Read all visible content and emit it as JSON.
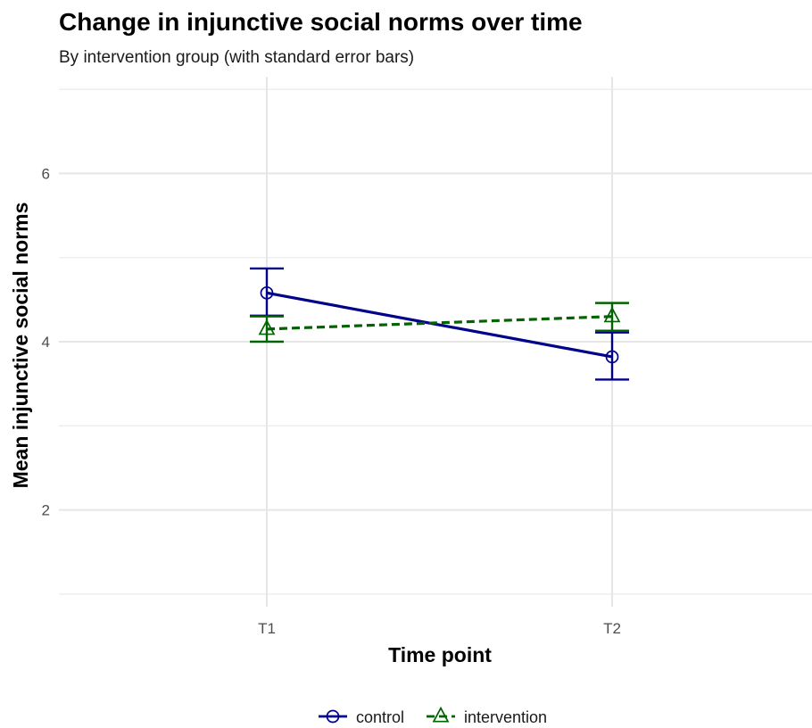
{
  "chart_data": {
    "type": "line",
    "title": "Change in injunctive social norms over time",
    "subtitle": "By intervention group (with standard error bars)",
    "xlabel": "Time point",
    "ylabel": "Mean injunctive social norms",
    "categories": [
      "T1",
      "T2"
    ],
    "ylim": [
      0.85,
      7.15
    ],
    "y_ticks": [
      2,
      4,
      6
    ],
    "y_tick_labels": [
      "2",
      "4",
      "6"
    ],
    "grid": true,
    "legend_position": "bottom",
    "series": [
      {
        "name": "control",
        "values": [
          4.58,
          3.82
        ],
        "se_lower": [
          4.31,
          3.55
        ],
        "se_upper": [
          4.87,
          4.11
        ],
        "color": "#00008B",
        "line_style": "solid",
        "marker": "circle"
      },
      {
        "name": "intervention",
        "values": [
          4.15,
          4.3
        ],
        "se_lower": [
          4.0,
          4.13
        ],
        "se_upper": [
          4.3,
          4.46
        ],
        "color": "#006400",
        "line_style": "dashed",
        "marker": "triangle"
      }
    ]
  }
}
